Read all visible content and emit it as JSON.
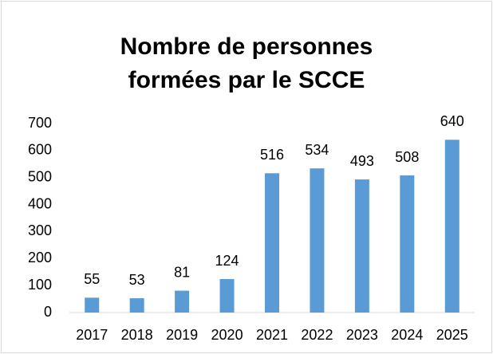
{
  "chart_data": {
    "type": "bar",
    "title": "Nombre de personnes formées par le SCCE",
    "categories": [
      "2017",
      "2018",
      "2019",
      "2020",
      "2021",
      "2022",
      "2023",
      "2024",
      "2025"
    ],
    "values": [
      55,
      53,
      81,
      124,
      516,
      534,
      493,
      508,
      640
    ],
    "color": "#5b9bd5",
    "ylim": [
      0,
      700
    ],
    "yticks": [
      0,
      100,
      200,
      300,
      400,
      500,
      600,
      700
    ],
    "grid": false
  }
}
